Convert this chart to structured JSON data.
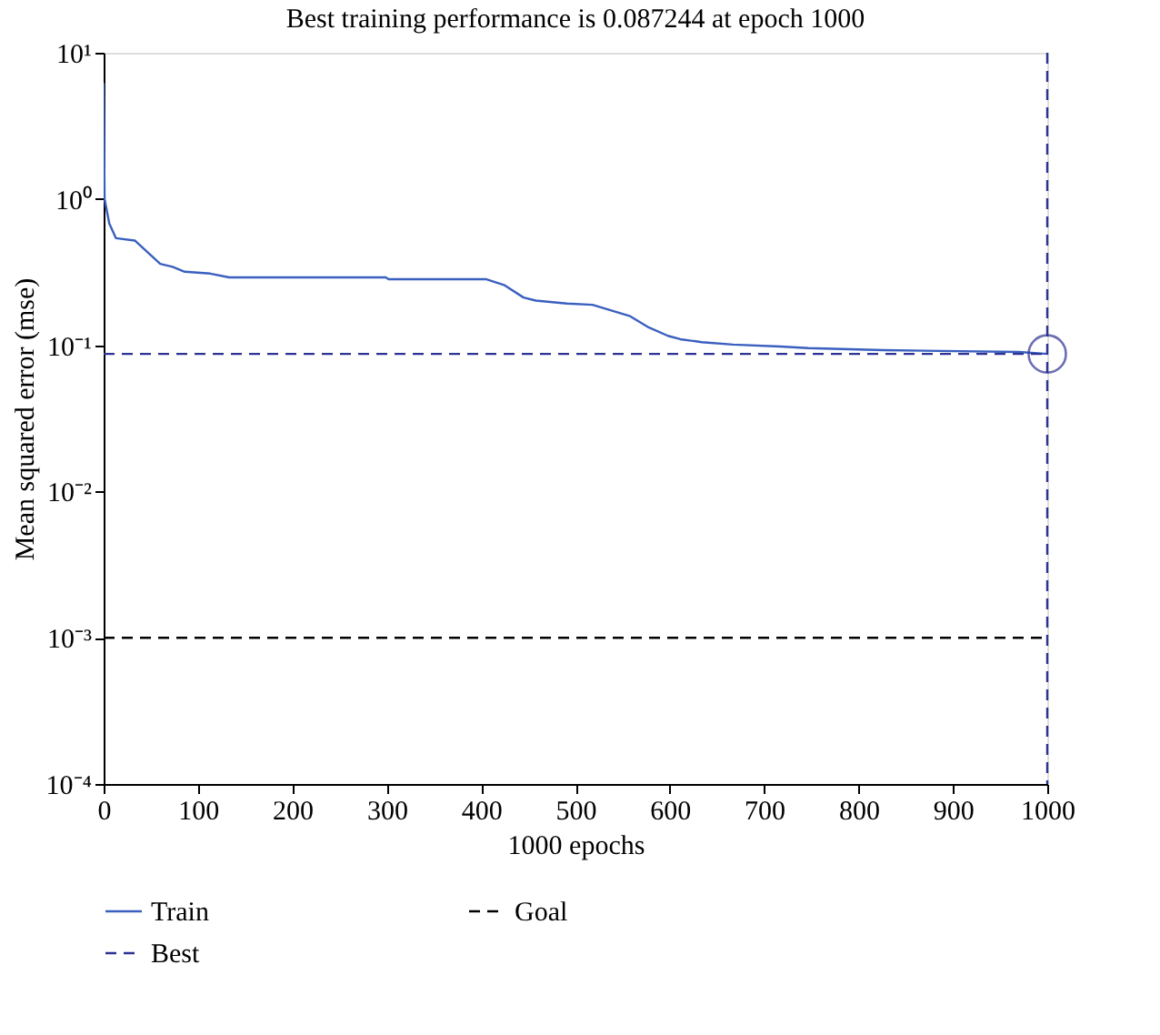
{
  "chart_data": {
    "type": "line",
    "title": "Best training performance is 0.087244 at epoch 1000",
    "xlabel": "1000 epochs",
    "ylabel": "Mean squared error (mse)",
    "log": "y",
    "xlim": [
      0,
      1000
    ],
    "xticks": [
      0,
      100,
      200,
      300,
      400,
      500,
      600,
      700,
      800,
      900,
      1000
    ],
    "ylim": [
      0.0001,
      10
    ],
    "yticks": [
      {
        "value": 0.0001,
        "label": "10⁻⁴"
      },
      {
        "value": 0.001,
        "label": "10⁻³"
      },
      {
        "value": 0.01,
        "label": "10⁻²"
      },
      {
        "value": 0.1,
        "label": "10⁻¹"
      },
      {
        "value": 1,
        "label": "10⁰"
      },
      {
        "value": 10,
        "label": "10¹"
      }
    ],
    "grid": false,
    "legend": "bottom",
    "series": [
      {
        "name": "Train",
        "color": "#3a5fbf",
        "line_style": "solid",
        "x": [
          0,
          1,
          6,
          13,
          33,
          60,
          73,
          86,
          113,
          133,
          299,
          302,
          405,
          425,
          445,
          458,
          491,
          518,
          538,
          558,
          578,
          598,
          611,
          634,
          667,
          717,
          747,
          827,
          970,
          1000
        ],
        "values": [
          6.2,
          1.0,
          0.68,
          0.54,
          0.52,
          0.36,
          0.344,
          0.318,
          0.309,
          0.291,
          0.291,
          0.283,
          0.283,
          0.257,
          0.212,
          0.202,
          0.193,
          0.189,
          0.173,
          0.158,
          0.132,
          0.116,
          0.11,
          0.105,
          0.101,
          0.098,
          0.0955,
          0.0925,
          0.09,
          0.087244
        ]
      },
      {
        "name": "Goal",
        "color": "#000000",
        "line_style": "dashed",
        "x": [
          0,
          1000
        ],
        "values": [
          0.001,
          0.001
        ]
      },
      {
        "name": "Best",
        "color": "#2e3192",
        "line_style": "dashed",
        "x": [
          0,
          1000
        ],
        "values": [
          0.087244,
          0.087244
        ]
      },
      {
        "type": "scatter",
        "marker": "circle",
        "color": "#2e3192",
        "x": [
          1000
        ],
        "values": [
          0.087244
        ]
      }
    ],
    "ref_lines": [
      {
        "axis": "x",
        "value": 1000,
        "color": "#2e3192",
        "line_style": "dashed"
      }
    ]
  }
}
